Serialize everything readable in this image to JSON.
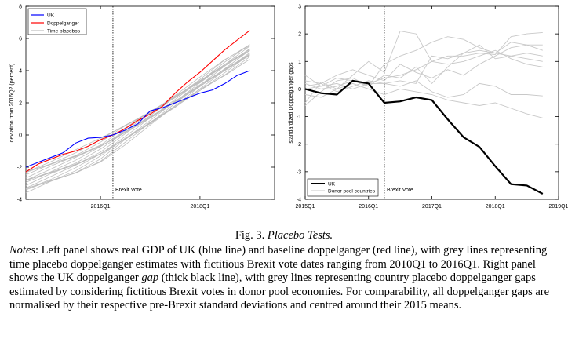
{
  "chart_data": [
    {
      "type": "line",
      "title": "",
      "xlabel": "",
      "ylabel": "deviation from 2016Q2 (percent)",
      "xlim": [
        2014.5,
        2019.5
      ],
      "ylim": [
        -4,
        8
      ],
      "yticks": [
        -4,
        -2,
        0,
        2,
        4,
        6,
        8
      ],
      "xticks": [
        {
          "value": 2016.0,
          "label": "2016Q1"
        },
        {
          "value": 2018.0,
          "label": "2018Q1"
        }
      ],
      "vline": {
        "x": 2016.25,
        "label": "Brexit Vote"
      },
      "legend": {
        "placement": "top-left",
        "entries": [
          "UK",
          "Doppelganger",
          "Time placebos"
        ]
      },
      "series": [
        {
          "name": "UK",
          "color": "#0000ff",
          "x": [
            2014.5,
            2014.75,
            2015.0,
            2015.25,
            2015.5,
            2015.75,
            2016.0,
            2016.25,
            2016.5,
            2016.75,
            2017.0,
            2017.25,
            2017.5,
            2017.75,
            2018.0,
            2018.25,
            2018.5,
            2018.75,
            2019.0
          ],
          "values": [
            -2.0,
            -1.7,
            -1.4,
            -1.1,
            -0.5,
            -0.2,
            -0.15,
            0.0,
            0.3,
            0.7,
            1.5,
            1.7,
            2.0,
            2.3,
            2.6,
            2.8,
            3.2,
            3.7,
            4.0
          ]
        },
        {
          "name": "Doppelganger",
          "color": "#ff0000",
          "x": [
            2014.5,
            2014.75,
            2015.0,
            2015.25,
            2015.5,
            2015.75,
            2016.0,
            2016.25,
            2016.5,
            2016.75,
            2017.0,
            2017.25,
            2017.5,
            2017.75,
            2018.0,
            2018.25,
            2018.5,
            2018.75,
            2019.0
          ],
          "values": [
            -2.3,
            -1.8,
            -1.5,
            -1.2,
            -1.0,
            -0.7,
            -0.3,
            0.0,
            0.4,
            0.9,
            1.3,
            1.8,
            2.6,
            3.3,
            3.9,
            4.6,
            5.3,
            5.9,
            6.5
          ]
        },
        {
          "name": "Time placebos",
          "color": "#bdbdbd",
          "band": true,
          "x": [
            2014.5,
            2015.0,
            2015.5,
            2016.0,
            2016.5,
            2017.0,
            2017.5,
            2018.0,
            2018.5,
            2019.0
          ],
          "lower": [
            -3.6,
            -3.0,
            -2.4,
            -1.6,
            -0.5,
            0.6,
            1.7,
            2.8,
            3.8,
            4.8
          ],
          "upper": [
            -2.2,
            -1.6,
            -1.0,
            -0.3,
            0.6,
            1.5,
            2.5,
            3.5,
            4.6,
            5.6
          ],
          "count": 18
        }
      ]
    },
    {
      "type": "line",
      "title": "",
      "xlabel": "",
      "ylabel": "standardized Doppelganger gaps",
      "xlim": [
        2015.0,
        2019.0
      ],
      "ylim": [
        -4,
        3
      ],
      "yticks": [
        -4,
        -3,
        -2,
        -1,
        0,
        1,
        2,
        3
      ],
      "xticks": [
        {
          "value": 2015.0,
          "label": "2015Q1"
        },
        {
          "value": 2016.0,
          "label": "2016Q1"
        },
        {
          "value": 2017.0,
          "label": "2017Q1"
        },
        {
          "value": 2018.0,
          "label": "2018Q1"
        },
        {
          "value": 2019.0,
          "label": "2019Q1"
        }
      ],
      "vline": {
        "x": 2016.25,
        "label": "Brexit Vote"
      },
      "legend": {
        "placement": "bottom-left",
        "entries": [
          "UK",
          "Donor pool countries"
        ]
      },
      "x": [
        2015.0,
        2015.25,
        2015.5,
        2015.75,
        2016.0,
        2016.25,
        2016.5,
        2016.75,
        2017.0,
        2017.25,
        2017.5,
        2017.75,
        2018.0,
        2018.25,
        2018.5,
        2018.75
      ],
      "series": [
        {
          "name": "UK",
          "color": "#000000",
          "values": [
            0.0,
            -0.15,
            -0.2,
            0.3,
            0.2,
            -0.5,
            -0.45,
            -0.3,
            -0.4,
            -1.1,
            -1.75,
            -2.1,
            -2.8,
            -3.45,
            -3.5,
            -3.8
          ]
        },
        {
          "name": "Donor pool countries",
          "color": "#c8c8c8",
          "values": [
            -0.5,
            0.25,
            0.0,
            0.5,
            1.0,
            0.6,
            2.1,
            2.0,
            1.0,
            1.2,
            1.2,
            1.3,
            1.25,
            1.9,
            2.0,
            2.05
          ]
        },
        {
          "color": "#c8c8c8",
          "values": [
            -0.6,
            -0.1,
            0.3,
            0.4,
            0.1,
            0.9,
            1.2,
            1.4,
            1.7,
            1.9,
            1.8,
            1.5,
            1.3,
            1.7,
            1.6,
            1.4
          ]
        },
        {
          "color": "#c8c8c8",
          "values": [
            0.5,
            0.1,
            0.4,
            0.3,
            0.2,
            0.2,
            0.3,
            0.2,
            1.2,
            1.1,
            1.3,
            1.4,
            1.3,
            1.2,
            1.1,
            1.0
          ]
        },
        {
          "color": "#c8c8c8",
          "values": [
            0.2,
            0.0,
            0.1,
            0.3,
            0.1,
            0.5,
            0.4,
            0.8,
            0.2,
            0.8,
            1.3,
            1.6,
            1.1,
            1.2,
            1.3,
            1.2
          ]
        },
        {
          "color": "#c8c8c8",
          "values": [
            0.0,
            0.1,
            0.2,
            0.0,
            0.2,
            0.4,
            0.5,
            0.7,
            1.0,
            0.9,
            1.0,
            1.2,
            1.4,
            1.1,
            0.9,
            0.8
          ]
        },
        {
          "color": "#c8c8c8",
          "values": [
            0.3,
            0.2,
            -0.1,
            0.1,
            0.3,
            0.2,
            0.1,
            0.3,
            -0.1,
            -0.3,
            -0.2,
            0.2,
            0.1,
            -0.2,
            -0.2,
            -0.25
          ]
        },
        {
          "color": "#c8c8c8",
          "values": [
            -0.2,
            -0.3,
            0.0,
            0.2,
            0.0,
            -0.2,
            0.0,
            -0.1,
            -0.2,
            -0.4,
            -0.5,
            -0.6,
            -0.5,
            -0.7,
            -0.9,
            -1.05
          ]
        },
        {
          "color": "#c8c8c8",
          "values": [
            0.1,
            0.2,
            0.5,
            0.7,
            0.5,
            0.3,
            0.9,
            0.6,
            0.4,
            0.7,
            0.5,
            0.9,
            1.2,
            1.5,
            1.6,
            1.6
          ]
        }
      ]
    }
  ],
  "caption": {
    "fig_label": "Fig. 3.",
    "fig_title": "Placebo Tests.",
    "notes_label": "Notes",
    "notes_part1": ": Left panel shows real GDP of UK (blue line) and baseline doppelganger (red line), with grey lines representing time placebo doppelganger estimates with fictitious Brexit vote dates ranging from 2010Q1 to 2016Q1. Right panel shows the UK doppelganger ",
    "notes_gap": "gap",
    "notes_part2": " (thick black line), with grey lines representing country placebo doppelganger gaps estimated by considering fictitious Brexit votes in donor pool economies. For comparability, all doppelganger gaps are normalised by their respective pre-Brexit standard deviations and centred around their 2015 means."
  }
}
